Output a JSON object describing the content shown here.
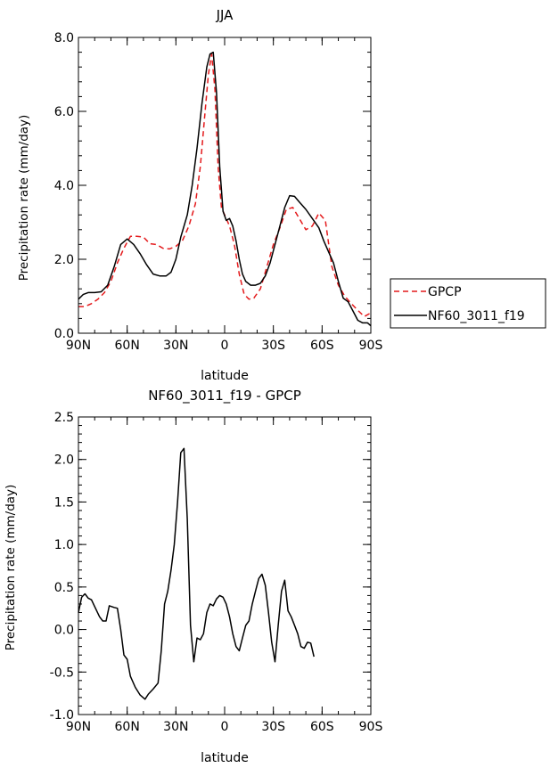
{
  "chart_data": [
    {
      "type": "line",
      "title": "JJA",
      "xlabel": "latitude",
      "ylabel": "Precipitation rate (mm/day)",
      "xlim": [
        -90,
        90
      ],
      "ylim": [
        0,
        8
      ],
      "x_ticks": [
        -90,
        -60,
        -30,
        0,
        30,
        60,
        90
      ],
      "x_tick_labels": [
        "90N",
        "60N",
        "30N",
        "0",
        "30S",
        "60S",
        "90S"
      ],
      "y_ticks": [
        0,
        2,
        4,
        6,
        8
      ],
      "y_tick_labels": [
        "0.0",
        "2.0",
        "4.0",
        "6.0",
        "8.0"
      ],
      "legend_position": "right",
      "series": [
        {
          "name": "GPCP",
          "color": "#e41a1c",
          "dash": "dashed",
          "points": [
            [
              -90,
              0.72
            ],
            [
              -86,
              0.72
            ],
            [
              -82,
              0.8
            ],
            [
              -78,
              0.92
            ],
            [
              -74,
              1.1
            ],
            [
              -70,
              1.4
            ],
            [
              -66,
              1.9
            ],
            [
              -62,
              2.3
            ],
            [
              -58,
              2.62
            ],
            [
              -54,
              2.62
            ],
            [
              -50,
              2.6
            ],
            [
              -46,
              2.42
            ],
            [
              -42,
              2.4
            ],
            [
              -38,
              2.3
            ],
            [
              -34,
              2.28
            ],
            [
              -30,
              2.35
            ],
            [
              -26,
              2.5
            ],
            [
              -22,
              2.9
            ],
            [
              -18,
              3.5
            ],
            [
              -15,
              4.5
            ],
            [
              -12,
              6.0
            ],
            [
              -10,
              7.0
            ],
            [
              -8,
              7.55
            ],
            [
              -6,
              6.6
            ],
            [
              -4,
              4.5
            ],
            [
              -2,
              3.4
            ],
            [
              0,
              3.2
            ],
            [
              3,
              2.9
            ],
            [
              6,
              2.4
            ],
            [
              9,
              1.6
            ],
            [
              12,
              1.05
            ],
            [
              15,
              0.92
            ],
            [
              18,
              0.95
            ],
            [
              22,
              1.2
            ],
            [
              26,
              1.8
            ],
            [
              30,
              2.4
            ],
            [
              34,
              2.85
            ],
            [
              38,
              3.35
            ],
            [
              42,
              3.4
            ],
            [
              46,
              3.1
            ],
            [
              50,
              2.8
            ],
            [
              54,
              2.9
            ],
            [
              58,
              3.25
            ],
            [
              62,
              3.05
            ],
            [
              66,
              1.8
            ],
            [
              70,
              1.3
            ],
            [
              74,
              1.0
            ],
            [
              78,
              0.8
            ],
            [
              82,
              0.62
            ],
            [
              86,
              0.45
            ],
            [
              90,
              0.55
            ]
          ]
        },
        {
          "name": "NF60_3011_f19",
          "color": "#000000",
          "dash": "solid",
          "points": [
            [
              -90,
              0.92
            ],
            [
              -87,
              1.05
            ],
            [
              -84,
              1.1
            ],
            [
              -80,
              1.1
            ],
            [
              -76,
              1.12
            ],
            [
              -72,
              1.3
            ],
            [
              -68,
              1.8
            ],
            [
              -64,
              2.4
            ],
            [
              -60,
              2.55
            ],
            [
              -56,
              2.4
            ],
            [
              -52,
              2.15
            ],
            [
              -48,
              1.85
            ],
            [
              -44,
              1.6
            ],
            [
              -40,
              1.55
            ],
            [
              -36,
              1.55
            ],
            [
              -33,
              1.65
            ],
            [
              -30,
              2.0
            ],
            [
              -27,
              2.6
            ],
            [
              -23,
              3.2
            ],
            [
              -20,
              4.0
            ],
            [
              -17,
              5.0
            ],
            [
              -14,
              6.2
            ],
            [
              -11,
              7.2
            ],
            [
              -9,
              7.55
            ],
            [
              -7,
              7.6
            ],
            [
              -5,
              6.5
            ],
            [
              -3,
              4.5
            ],
            [
              -1,
              3.3
            ],
            [
              1,
              3.05
            ],
            [
              3,
              3.1
            ],
            [
              5,
              2.9
            ],
            [
              7,
              2.5
            ],
            [
              9,
              2.0
            ],
            [
              11,
              1.6
            ],
            [
              13,
              1.4
            ],
            [
              16,
              1.3
            ],
            [
              19,
              1.3
            ],
            [
              22,
              1.35
            ],
            [
              25,
              1.55
            ],
            [
              28,
              1.9
            ],
            [
              31,
              2.4
            ],
            [
              34,
              2.9
            ],
            [
              37,
              3.4
            ],
            [
              40,
              3.72
            ],
            [
              43,
              3.7
            ],
            [
              46,
              3.55
            ],
            [
              50,
              3.35
            ],
            [
              54,
              3.1
            ],
            [
              58,
              2.85
            ],
            [
              61,
              2.5
            ],
            [
              64,
              2.2
            ],
            [
              67,
              1.9
            ],
            [
              70,
              1.4
            ],
            [
              73,
              0.95
            ],
            [
              76,
              0.85
            ],
            [
              79,
              0.6
            ],
            [
              82,
              0.35
            ],
            [
              85,
              0.28
            ],
            [
              88,
              0.28
            ],
            [
              90,
              0.2
            ]
          ]
        }
      ]
    },
    {
      "type": "line",
      "title": "NF60_3011_f19 - GPCP",
      "xlabel": "latitude",
      "ylabel": "Precipitation rate (mm/day)",
      "xlim": [
        -90,
        90
      ],
      "ylim": [
        -1,
        2.5
      ],
      "x_ticks": [
        -90,
        -60,
        -30,
        0,
        30,
        60,
        90
      ],
      "x_tick_labels": [
        "90N",
        "60N",
        "30N",
        "0",
        "30S",
        "60S",
        "90S"
      ],
      "y_ticks": [
        -1,
        -0.5,
        0,
        0.5,
        1,
        1.5,
        2,
        2.5
      ],
      "y_tick_labels": [
        "-1.0",
        "-0.5",
        "0.0",
        "0.5",
        "1.0",
        "1.5",
        "2.0",
        "2.5"
      ],
      "series": [
        {
          "color": "#000000",
          "dash": "solid",
          "points": [
            [
              -90,
              0.2
            ],
            [
              -88,
              0.38
            ],
            [
              -86,
              0.42
            ],
            [
              -84,
              0.37
            ],
            [
              -82,
              0.35
            ],
            [
              -80,
              0.27
            ],
            [
              -77,
              0.15
            ],
            [
              -75,
              0.1
            ],
            [
              -73,
              0.1
            ],
            [
              -71,
              0.28
            ],
            [
              -68,
              0.26
            ],
            [
              -66,
              0.25
            ],
            [
              -64,
              0.0
            ],
            [
              -62,
              -0.3
            ],
            [
              -60,
              -0.35
            ],
            [
              -58,
              -0.55
            ],
            [
              -55,
              -0.68
            ],
            [
              -52,
              -0.77
            ],
            [
              -49,
              -0.82
            ],
            [
              -47,
              -0.76
            ],
            [
              -44,
              -0.7
            ],
            [
              -41,
              -0.63
            ],
            [
              -39,
              -0.25
            ],
            [
              -37,
              0.3
            ],
            [
              -35,
              0.45
            ],
            [
              -33,
              0.7
            ],
            [
              -31,
              1.0
            ],
            [
              -29,
              1.5
            ],
            [
              -27,
              2.08
            ],
            [
              -25,
              2.13
            ],
            [
              -23,
              1.3
            ],
            [
              -21,
              0.05
            ],
            [
              -19,
              -0.38
            ],
            [
              -17,
              -0.1
            ],
            [
              -15,
              -0.12
            ],
            [
              -13,
              -0.05
            ],
            [
              -11,
              0.2
            ],
            [
              -9,
              0.3
            ],
            [
              -7,
              0.28
            ],
            [
              -5,
              0.36
            ],
            [
              -3,
              0.4
            ],
            [
              -1,
              0.38
            ],
            [
              1,
              0.3
            ],
            [
              3,
              0.15
            ],
            [
              5,
              -0.05
            ],
            [
              7,
              -0.2
            ],
            [
              9,
              -0.25
            ],
            [
              11,
              -0.1
            ],
            [
              13,
              0.05
            ],
            [
              15,
              0.1
            ],
            [
              17,
              0.3
            ],
            [
              19,
              0.45
            ],
            [
              21,
              0.6
            ],
            [
              23,
              0.65
            ],
            [
              25,
              0.52
            ],
            [
              27,
              0.2
            ],
            [
              29,
              -0.15
            ],
            [
              31,
              -0.38
            ],
            [
              33,
              0.05
            ],
            [
              35,
              0.45
            ],
            [
              37,
              0.58
            ],
            [
              39,
              0.22
            ],
            [
              41,
              0.15
            ],
            [
              43,
              0.05
            ],
            [
              45,
              -0.05
            ],
            [
              47,
              -0.2
            ],
            [
              49,
              -0.22
            ],
            [
              51,
              -0.15
            ],
            [
              53,
              -0.16
            ],
            [
              55,
              -0.32
            ]
          ]
        }
      ]
    }
  ]
}
